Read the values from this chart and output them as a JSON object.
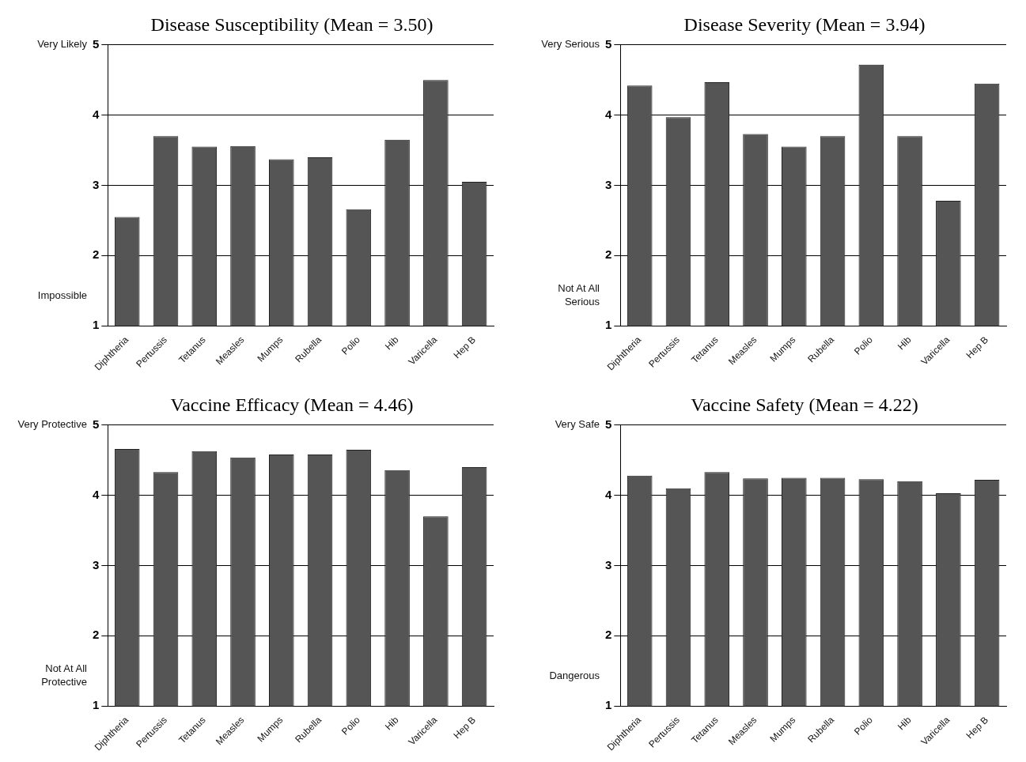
{
  "chart_data": [
    {
      "type": "bar",
      "title": "Disease Susceptibility (Mean = 3.50)",
      "categories": [
        "Diphtheria",
        "Pertussis",
        "Tetanus",
        "Measles",
        "Mumps",
        "Rubella",
        "Polio",
        "Hib",
        "Varicella",
        "Hep B"
      ],
      "values": [
        2.55,
        3.7,
        3.55,
        3.56,
        3.37,
        3.4,
        2.66,
        3.65,
        4.5,
        3.05
      ],
      "color": "#555555",
      "ylim": [
        1,
        5
      ],
      "yticks": [
        1,
        2,
        3,
        4,
        5
      ],
      "grid": "y",
      "annotations": [
        "Very Likely",
        "Impossible"
      ]
    },
    {
      "type": "bar",
      "title": "Disease Severity (Mean = 3.94)",
      "categories": [
        "Diphtheria",
        "Pertussis",
        "Tetanus",
        "Measles",
        "Mumps",
        "Rubella",
        "Polio",
        "Hib",
        "Varicella",
        "Hep B"
      ],
      "values": [
        4.42,
        3.97,
        4.47,
        3.73,
        3.55,
        3.7,
        4.72,
        3.7,
        2.78,
        4.45
      ],
      "color": "#555555",
      "ylim": [
        1,
        5
      ],
      "yticks": [
        1,
        2,
        3,
        4,
        5
      ],
      "grid": "y",
      "annotations": [
        "Very Serious",
        "Not At All Serious"
      ]
    },
    {
      "type": "bar",
      "title": "Vaccine Efficacy (Mean = 4.46)",
      "categories": [
        "Diphtheria",
        "Pertussis",
        "Tetanus",
        "Measles",
        "Mumps",
        "Rubella",
        "Polio",
        "Hib",
        "Varicella",
        "Hep B"
      ],
      "values": [
        4.66,
        4.33,
        4.63,
        4.54,
        4.58,
        4.58,
        4.65,
        4.36,
        3.7,
        4.4
      ],
      "color": "#555555",
      "ylim": [
        1,
        5
      ],
      "yticks": [
        1,
        2,
        3,
        4,
        5
      ],
      "grid": "y",
      "annotations": [
        "Very Protective",
        "Not At All Protective"
      ]
    },
    {
      "type": "bar",
      "title": "Vaccine Safety (Mean = 4.22)",
      "categories": [
        "Diphtheria",
        "Pertussis",
        "Tetanus",
        "Measles",
        "Mumps",
        "Rubella",
        "Polio",
        "Hib",
        "Varicella",
        "Hep B"
      ],
      "values": [
        4.28,
        4.1,
        4.33,
        4.24,
        4.25,
        4.25,
        4.23,
        4.2,
        4.03,
        4.22
      ],
      "color": "#555555",
      "ylim": [
        1,
        5
      ],
      "yticks": [
        1,
        2,
        3,
        4,
        5
      ],
      "grid": "y",
      "annotations": [
        "Very Safe",
        "Dangerous"
      ]
    }
  ]
}
